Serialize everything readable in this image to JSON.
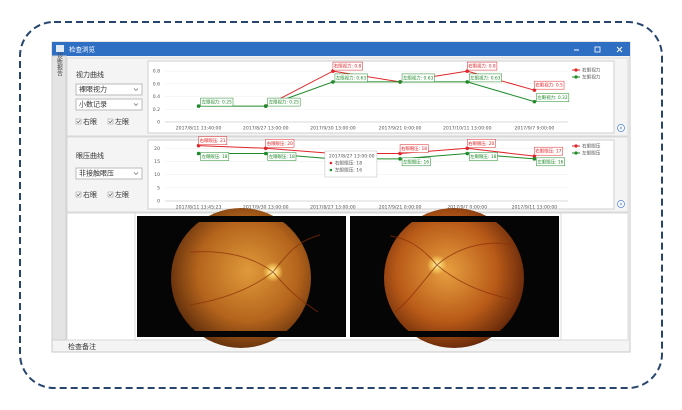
{
  "window": {
    "title": "检查浏览",
    "sidebar": "诊断报告",
    "remark": "检查备注"
  },
  "vision": {
    "label": "视力曲线",
    "select1": "裸眼视力",
    "select2": "小数记录",
    "check_right": "右眼",
    "check_left": "左眼"
  },
  "pressure": {
    "label": "眼压曲线",
    "select1": "非接触眼压",
    "check_right": "右眼",
    "check_left": "左眼"
  },
  "chart_data": [
    {
      "type": "line",
      "categories": [
        "2017/8/11 13:40:00",
        "2017/8/27 13:00:00",
        "2017/9/30 13:00:00",
        "2017/9/21 0:00:00",
        "2017/10/11 13:00:00",
        "2017/9/7 9:00:00"
      ],
      "ylim": [
        0,
        0.88
      ],
      "yticks": [
        0,
        0.2,
        0.4,
        0.6,
        0.8
      ],
      "grid": true,
      "legend": "right",
      "series": [
        {
          "name": "右眼视力",
          "color": "#e0262a",
          "values": [
            null,
            0.25,
            0.8,
            0.63,
            0.8,
            0.5
          ],
          "value_labels": [
            null,
            null,
            "右眼视力: 0.8",
            null,
            "右眼视力: 0.8",
            "右眼视力: 0.5"
          ]
        },
        {
          "name": "左眼视力",
          "color": "#1f8a2a",
          "values": [
            0.25,
            0.25,
            0.63,
            0.63,
            0.63,
            0.32
          ],
          "value_labels": [
            "左眼视力: 0.25",
            "左眼视力: 0.25",
            "左眼视力: 0.63",
            "左眼视力: 0.63",
            "左眼视力: 0.63",
            "左眼视力: 0.32"
          ]
        }
      ]
    },
    {
      "type": "line",
      "categories": [
        "2017/8/11 13:45:23",
        "2017/9/30 13:00:00",
        "2017/8/27 13:00:00",
        "2017/9/21 0:00:00",
        "2017/9/7 0:00:00",
        "2017/9/11 13:00:00"
      ],
      "ylim": [
        0,
        22
      ],
      "yticks": [
        0,
        5,
        10,
        15,
        20
      ],
      "grid": true,
      "legend": "right",
      "series": [
        {
          "name": "右眼眼压",
          "color": "#e0262a",
          "values": [
            21,
            20,
            18,
            18,
            20,
            17
          ],
          "value_labels": [
            "右眼眼压: 21",
            "右眼眼压: 20",
            null,
            "右眼眼压: 18",
            "右眼眼压: 20",
            "右眼眼压: 17"
          ]
        },
        {
          "name": "左眼眼压",
          "color": "#1f8a2a",
          "values": [
            18,
            18,
            16,
            16,
            18,
            16
          ],
          "value_labels": [
            "左眼眼压: 18",
            "左眼眼压: 18",
            null,
            "左眼眼压: 16",
            "左眼眼压: 18",
            "左眼眼压: 16"
          ]
        }
      ],
      "tooltip": {
        "title": "2017/8/27 13:00:00",
        "lines": [
          "右眼眼压: 18",
          "左眼眼压: 16"
        ]
      }
    }
  ]
}
